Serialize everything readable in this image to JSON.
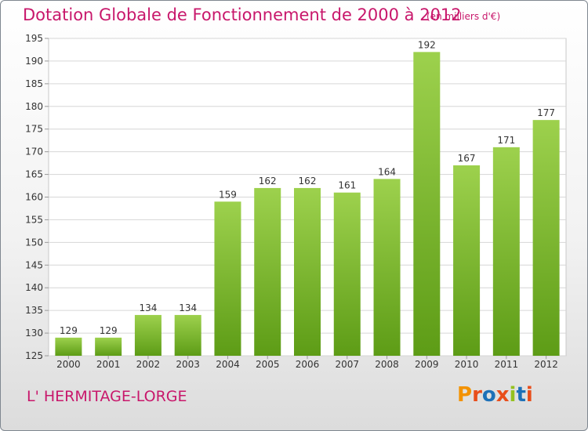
{
  "header": {
    "title": "Dotation Globale de Fonctionnement de 2000 à 2012",
    "subtitle": "(en milliers d'€)"
  },
  "footer": {
    "commune": "L' HERMITAGE-LORGE",
    "logo_text": "Proxiti",
    "logo_colors": [
      "#f39200",
      "#e94e1b",
      "#1d71b8",
      "#e94e1b",
      "#95c11f",
      "#1d71b8",
      "#e94e1b"
    ]
  },
  "chart_data": {
    "type": "bar",
    "categories": [
      "2000",
      "2001",
      "2002",
      "2003",
      "2004",
      "2005",
      "2006",
      "2007",
      "2008",
      "2009",
      "2010",
      "2011",
      "2012"
    ],
    "values": [
      129,
      129,
      134,
      134,
      159,
      162,
      162,
      161,
      164,
      192,
      167,
      171,
      177
    ],
    "data_labels": [
      "129",
      "129",
      "134",
      "134",
      "159",
      "162",
      "162",
      "161",
      "164",
      "192",
      "167",
      "171",
      "177"
    ],
    "ylim": [
      125,
      195
    ],
    "yticks": [
      125,
      130,
      135,
      140,
      145,
      150,
      155,
      160,
      165,
      170,
      175,
      180,
      185,
      190,
      195
    ],
    "grid": true,
    "bar_color_top": "#9dd14d",
    "bar_color_bottom": "#5d9c16"
  }
}
